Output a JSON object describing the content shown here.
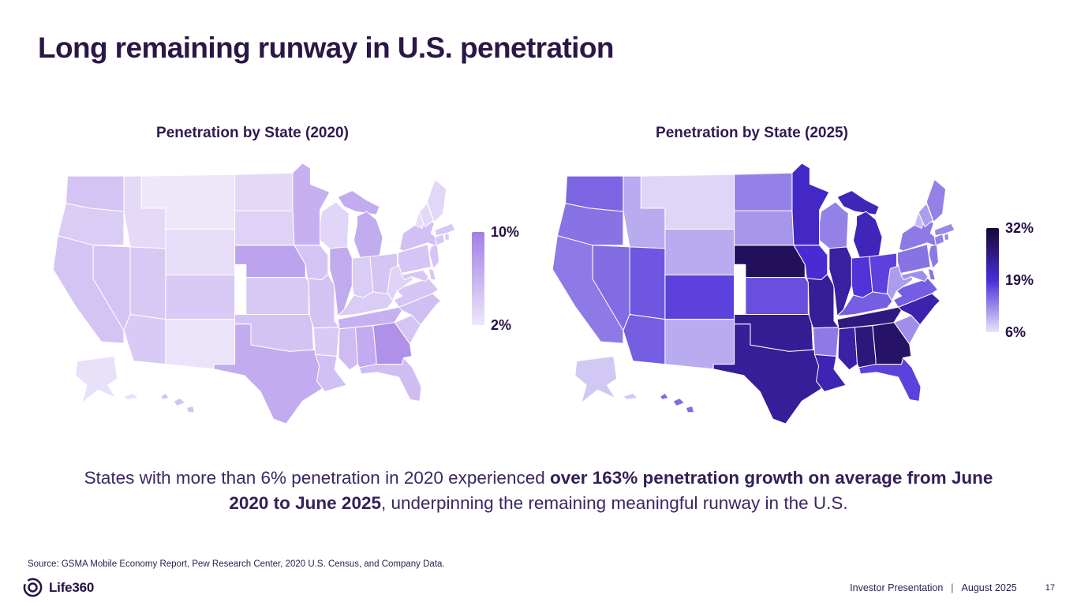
{
  "slide": {
    "title": "Long remaining runway in U.S. penetration",
    "caption": {
      "pre": "States with more than 6% penetration in 2020 experienced ",
      "bold": "over 163% penetration growth on average from June 2020 to June 2025",
      "post": ", underpinning the remaining meaningful runway in the U.S."
    },
    "source": "Source: GSMA Mobile Economy Report, Pew Research Center, 2020 U.S. Census, and Company Data.",
    "footer": {
      "brand": "Life360",
      "label": "Investor Presentation",
      "divider": "|",
      "date": "August 2025",
      "page": "17"
    },
    "colors": {
      "title_text": "#2b1745",
      "body_text": "#3c2763",
      "map_stroke": "#ffffff"
    }
  },
  "chart_data": {
    "type": "choropleth",
    "subject": "Life360 penetration by U.S. state (percent, estimated from shading)",
    "maps": [
      {
        "title": "Penetration by State (2020)",
        "legend": {
          "labels": [
            "10%",
            "2%"
          ],
          "min": 2,
          "max": 10,
          "color_stops": [
            [
              2,
              "#EDE7FA"
            ],
            [
              10,
              "#A27FE6"
            ]
          ]
        },
        "values": {
          "WA": 4.7,
          "OR": 4.0,
          "CA": 4.7,
          "ID": 3.0,
          "MT": 2.0,
          "WY": 2.7,
          "NV": 4.7,
          "UT": 4.3,
          "CO": 4.2,
          "AZ": 4.2,
          "NM": 2.3,
          "ND": 3.1,
          "SD": 3.6,
          "NE": 7.2,
          "KS": 4.3,
          "OK": 4.8,
          "TX": 6.6,
          "MN": 6.2,
          "IA": 4.7,
          "MO": 4.8,
          "AR": 4.2,
          "LA": 5.0,
          "WI": 3.3,
          "MI": 6.6,
          "IL": 6.7,
          "IN": 4.1,
          "OH": 4.6,
          "KY": 4.1,
          "TN": 6.2,
          "MS": 5.4,
          "AL": 6.6,
          "GA": 8.6,
          "FL": 5.2,
          "SC": 4.6,
          "NC": 5.1,
          "VA": 4.6,
          "WV": 3.5,
          "PA": 4.6,
          "NY": 5.0,
          "NJ": 4.6,
          "MD": 4.5,
          "DE": 4.5,
          "CT": 4.4,
          "RI": 4.4,
          "MA": 4.4,
          "VT": 2.8,
          "NH": 3.1,
          "ME": 3.2,
          "AK": 2.5,
          "HI": 4.8
        }
      },
      {
        "title": "Penetration by State (2025)",
        "legend": {
          "labels": [
            "32%",
            "19%",
            "6%"
          ],
          "min": 6,
          "max": 32,
          "color_stops": [
            [
              6,
              "#EAE4F9"
            ],
            [
              19,
              "#4A2CD8"
            ],
            [
              32,
              "#160835"
            ]
          ]
        },
        "values": {
          "WA": 15.0,
          "OR": 14.0,
          "CA": 13.5,
          "ID": 10.0,
          "MT": 7.0,
          "WY": 10.0,
          "NV": 14.5,
          "UT": 16.0,
          "CO": 17.5,
          "AZ": 15.5,
          "NM": 10.0,
          "ND": 13.0,
          "SD": 11.5,
          "NE": 29.0,
          "KS": 16.5,
          "OK": 24.5,
          "TX": 24.0,
          "MN": 20.5,
          "IA": 19.5,
          "MO": 24.0,
          "AR": 13.5,
          "LA": 22.0,
          "WI": 13.0,
          "MI": 21.5,
          "IL": 23.5,
          "IN": 18.5,
          "OH": 17.5,
          "KY": 15.5,
          "TN": 26.0,
          "MS": 23.0,
          "AL": 26.5,
          "GA": 28.0,
          "FL": 17.5,
          "SC": 12.0,
          "NC": 22.5,
          "VA": 15.5,
          "WV": 11.0,
          "PA": 14.0,
          "NY": 13.5,
          "NJ": 13.5,
          "MD": 12.0,
          "DE": 14.0,
          "CT": 13.0,
          "RI": 12.5,
          "MA": 12.5,
          "VT": 9.0,
          "NH": 11.0,
          "ME": 13.0,
          "AK": 8.0,
          "HI": 14.5
        }
      }
    ]
  }
}
